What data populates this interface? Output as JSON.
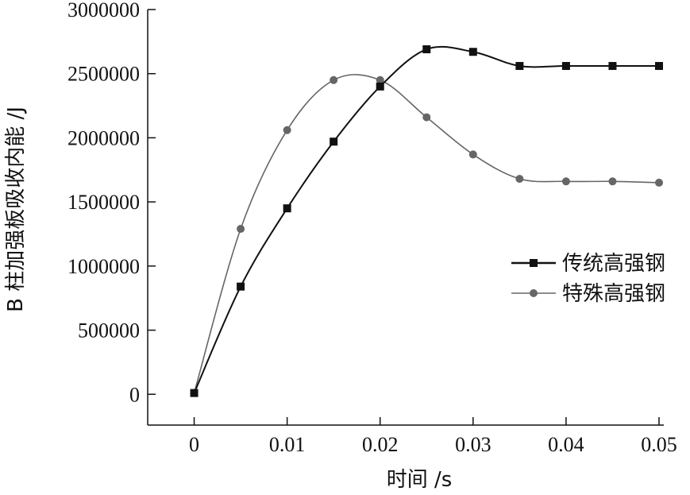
{
  "chart_data": {
    "type": "line",
    "xlabel": "时间 /s",
    "ylabel": "B 柱加强板吸收内能 /J",
    "xlim": [
      -0.005,
      0.05
    ],
    "ylim": [
      -240000,
      3000000
    ],
    "x_ticks": [
      0,
      0.01,
      0.02,
      0.03,
      0.04,
      0.05
    ],
    "x_tick_labels": [
      "0",
      "0.01",
      "0.02",
      "0.03",
      "0.04",
      "0.05"
    ],
    "y_ticks": [
      0,
      500000,
      1000000,
      1500000,
      2000000,
      2500000,
      3000000
    ],
    "y_tick_labels": [
      "0",
      "500000",
      "1000000",
      "1500000",
      "2000000",
      "2500000",
      "3000000"
    ],
    "grid": false,
    "legend_position": "right",
    "series": [
      {
        "name": "传统高强钢",
        "color": "#111111",
        "marker": "square",
        "x": [
          0,
          0.005,
          0.01,
          0.015,
          0.02,
          0.025,
          0.03,
          0.035,
          0.04,
          0.045,
          0.05
        ],
        "y": [
          10000,
          840000,
          1450000,
          1970000,
          2400000,
          2690000,
          2670000,
          2560000,
          2560000,
          2560000,
          2560000
        ]
      },
      {
        "name": "特殊高强钢",
        "color": "#666666",
        "marker": "circle",
        "x": [
          0,
          0.005,
          0.01,
          0.015,
          0.02,
          0.025,
          0.03,
          0.035,
          0.04,
          0.045,
          0.05
        ],
        "y": [
          10000,
          1290000,
          2060000,
          2450000,
          2450000,
          2160000,
          1870000,
          1680000,
          1660000,
          1660000,
          1650000
        ]
      }
    ]
  }
}
